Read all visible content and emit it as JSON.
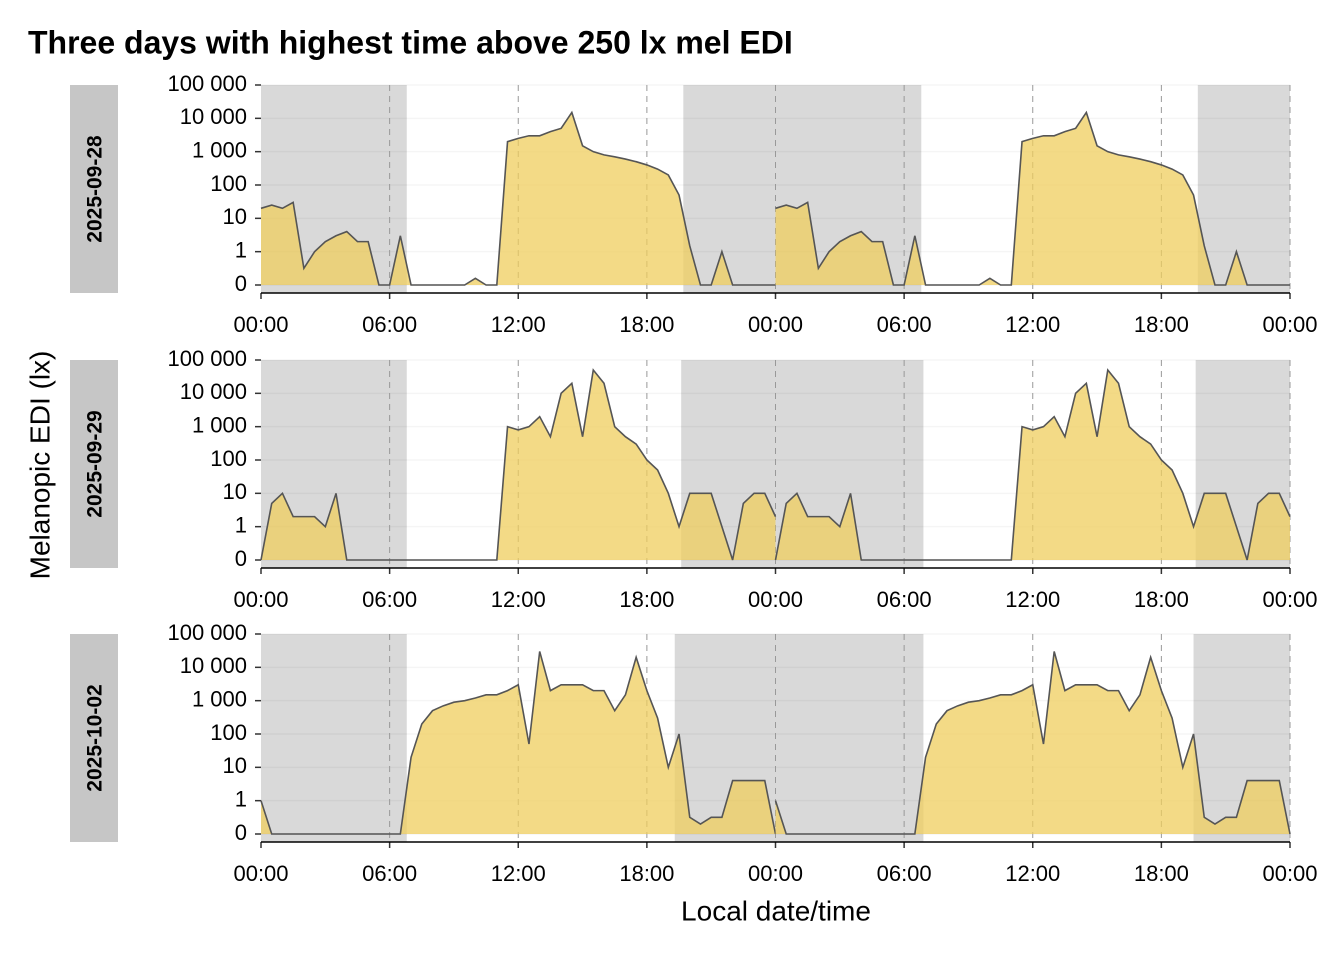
{
  "title": "Three days with highest time above 250 lx mel EDI",
  "ylabel": "Melanopic EDI (lx)",
  "xlabel": "Local date/time",
  "chart_data": [
    {
      "type": "area",
      "facet": "2025-09-28",
      "color": "#efcd5e",
      "line_color": "#555555",
      "night_color": "#d9d9d9",
      "x": [
        0,
        0.5,
        1,
        1.5,
        2,
        2.5,
        3,
        3.5,
        4,
        4.5,
        5,
        5.5,
        6,
        6.5,
        7,
        7.5,
        8,
        8.5,
        9,
        9.5,
        10,
        10.5,
        11,
        11.5,
        12,
        12.5,
        13,
        13.5,
        14,
        14.5,
        15,
        15.5,
        16,
        16.5,
        17,
        17.5,
        18,
        18.5,
        19,
        19.5,
        20,
        20.5,
        21,
        21.5,
        22,
        22.5,
        23,
        23.5,
        24
      ],
      "values": [
        20,
        25,
        20,
        30,
        0.5,
        1,
        2,
        3,
        4,
        2,
        2,
        0,
        0,
        3,
        0,
        0,
        0,
        0,
        0,
        0,
        0.2,
        0,
        0,
        2000,
        2500,
        3000,
        3000,
        4000,
        5000,
        15000,
        1500,
        1000,
        800,
        700,
        600,
        500,
        400,
        300,
        200,
        50,
        1.5,
        0,
        0,
        1,
        0,
        0,
        0,
        0,
        0
      ],
      "nights": [
        [
          0,
          6.8
        ],
        [
          19.7,
          30.8
        ],
        [
          43.7,
          48
        ]
      ],
      "xlim": [
        0,
        48
      ],
      "xticks": [
        {
          "value": 0,
          "label": "00:00"
        },
        {
          "value": 6,
          "label": "06:00"
        },
        {
          "value": 12,
          "label": "12:00"
        },
        {
          "value": 18,
          "label": "18:00"
        },
        {
          "value": 24,
          "label": "00:00"
        },
        {
          "value": 30,
          "label": "06:00"
        },
        {
          "value": 36,
          "label": "12:00"
        },
        {
          "value": 42,
          "label": "18:00"
        },
        {
          "value": 48,
          "label": "00:00"
        }
      ],
      "ylim": [
        0,
        100000
      ],
      "yticks": [
        0,
        1,
        10,
        100,
        {
          "value": 1000,
          "label": "1 000"
        },
        {
          "value": 10000,
          "label": "10 000"
        },
        {
          "value": 100000,
          "label": "100 000"
        }
      ]
    },
    {
      "type": "area",
      "facet": "2025-09-29",
      "color": "#efcd5e",
      "line_color": "#555555",
      "night_color": "#d9d9d9",
      "x": [
        0,
        0.5,
        1,
        1.5,
        2,
        2.5,
        3,
        3.5,
        4,
        4.5,
        5,
        5.5,
        6,
        6.5,
        7,
        7.5,
        8,
        8.5,
        9,
        9.5,
        10,
        10.5,
        11,
        11.5,
        12,
        12.5,
        13,
        13.5,
        14,
        14.5,
        15,
        15.5,
        16,
        16.5,
        17,
        17.5,
        18,
        18.5,
        19,
        19.5,
        20,
        20.5,
        21,
        21.5,
        22,
        22.5,
        23,
        23.5,
        24
      ],
      "values": [
        0,
        5,
        10,
        2,
        2,
        2,
        1,
        10,
        0,
        0,
        0,
        0,
        0,
        0,
        0,
        0,
        0,
        0,
        0,
        0,
        0,
        0,
        0,
        1000,
        800,
        1000,
        2000,
        500,
        10000,
        20000,
        500,
        50000,
        20000,
        1000,
        500,
        300,
        100,
        50,
        10,
        1,
        10,
        10,
        10,
        1,
        0,
        5,
        10,
        10,
        2
      ],
      "nights": [
        [
          0,
          6.8
        ],
        [
          19.6,
          30.9
        ],
        [
          43.6,
          48
        ]
      ],
      "xlim": [
        0,
        48
      ],
      "xticks": [
        {
          "value": 0,
          "label": "00:00"
        },
        {
          "value": 6,
          "label": "06:00"
        },
        {
          "value": 12,
          "label": "12:00"
        },
        {
          "value": 18,
          "label": "18:00"
        },
        {
          "value": 24,
          "label": "00:00"
        },
        {
          "value": 30,
          "label": "06:00"
        },
        {
          "value": 36,
          "label": "12:00"
        },
        {
          "value": 42,
          "label": "18:00"
        },
        {
          "value": 48,
          "label": "00:00"
        }
      ],
      "ylim": [
        0,
        100000
      ],
      "yticks": [
        0,
        1,
        10,
        100,
        {
          "value": 1000,
          "label": "1 000"
        },
        {
          "value": 10000,
          "label": "10 000"
        },
        {
          "value": 100000,
          "label": "100 000"
        }
      ]
    },
    {
      "type": "area",
      "facet": "2025-10-02",
      "color": "#efcd5e",
      "line_color": "#555555",
      "night_color": "#d9d9d9",
      "x": [
        0,
        0.5,
        1,
        1.5,
        2,
        2.5,
        3,
        3.5,
        4,
        4.5,
        5,
        5.5,
        6,
        6.5,
        7,
        7.5,
        8,
        8.5,
        9,
        9.5,
        10,
        10.5,
        11,
        11.5,
        12,
        12.5,
        13,
        13.5,
        14,
        14.5,
        15,
        15.5,
        16,
        16.5,
        17,
        17.5,
        18,
        18.5,
        19,
        19.5,
        20,
        20.5,
        21,
        21.5,
        22,
        22.5,
        23,
        23.5,
        24
      ],
      "values": [
        1,
        0,
        0,
        0,
        0,
        0,
        0,
        0,
        0,
        0,
        0,
        0,
        0,
        0,
        20,
        200,
        500,
        700,
        900,
        1000,
        1200,
        1500,
        1500,
        2000,
        3000,
        50,
        30000,
        2000,
        3000,
        3000,
        3000,
        2000,
        2000,
        500,
        1500,
        20000,
        2000,
        300,
        10,
        100,
        0.5,
        0.3,
        0.5,
        0.5,
        4,
        4,
        4,
        4,
        0
      ],
      "nights": [
        [
          0,
          6.8
        ],
        [
          19.3,
          30.9
        ],
        [
          43.5,
          48
        ]
      ],
      "xlim": [
        0,
        48
      ],
      "xticks": [
        {
          "value": 0,
          "label": "00:00"
        },
        {
          "value": 6,
          "label": "06:00"
        },
        {
          "value": 12,
          "label": "12:00"
        },
        {
          "value": 18,
          "label": "18:00"
        },
        {
          "value": 24,
          "label": "00:00"
        },
        {
          "value": 30,
          "label": "06:00"
        },
        {
          "value": 36,
          "label": "12:00"
        },
        {
          "value": 42,
          "label": "18:00"
        },
        {
          "value": 48,
          "label": "00:00"
        }
      ],
      "ylim": [
        0,
        100000
      ],
      "yticks": [
        0,
        1,
        10,
        100,
        {
          "value": 1000,
          "label": "1 000"
        },
        {
          "value": 10000,
          "label": "10 000"
        },
        {
          "value": 100000,
          "label": "100 000"
        }
      ]
    }
  ]
}
